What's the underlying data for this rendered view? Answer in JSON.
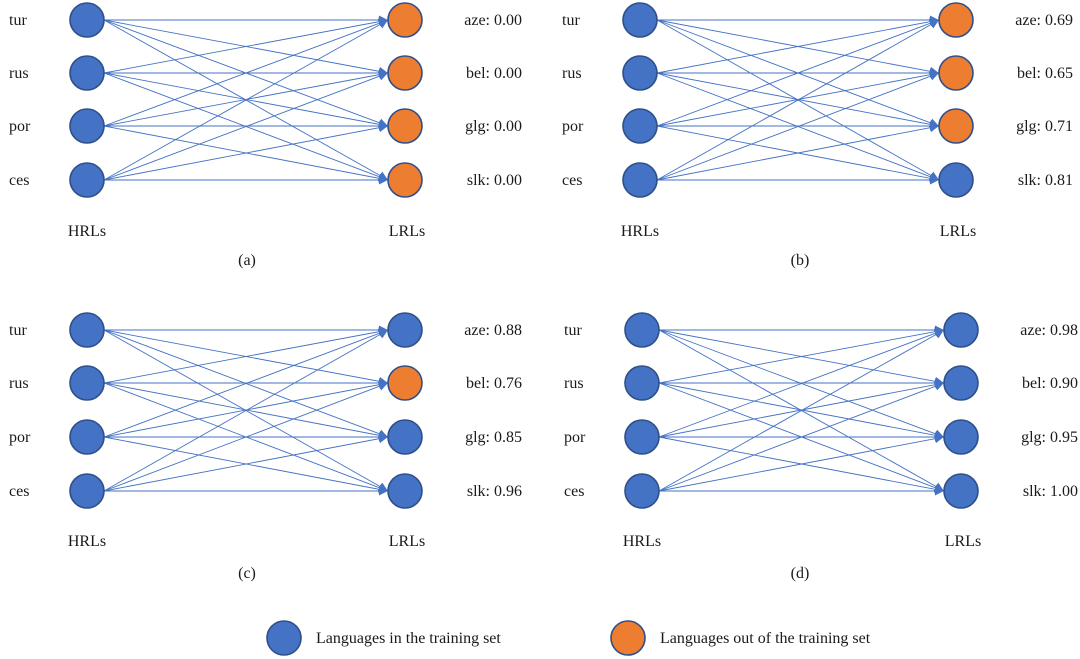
{
  "colors": {
    "in_training": "#4472c4",
    "out_of_training": "#ed7d31",
    "edge": "#4472c4",
    "node_stroke": "#2f4f8a"
  },
  "panels": [
    {
      "caption": "(a)",
      "hrl_title": "HRLs",
      "lrl_title": "LRLs",
      "hrls": [
        "tur",
        "rus",
        "por",
        "ces"
      ],
      "lrls": [
        {
          "label": "aze: 0.00",
          "in_training": false
        },
        {
          "label": "bel: 0.00",
          "in_training": false
        },
        {
          "label": "glg: 0.00",
          "in_training": false
        },
        {
          "label": "slk: 0.00",
          "in_training": false
        }
      ]
    },
    {
      "caption": "(b)",
      "hrl_title": "HRLs",
      "lrl_title": "LRLs",
      "hrls": [
        "tur",
        "rus",
        "por",
        "ces"
      ],
      "lrls": [
        {
          "label": "aze: 0.69",
          "in_training": false
        },
        {
          "label": "bel: 0.65",
          "in_training": false
        },
        {
          "label": "glg: 0.71",
          "in_training": false
        },
        {
          "label": "slk: 0.81",
          "in_training": true
        }
      ]
    },
    {
      "caption": "(c)",
      "hrl_title": "HRLs",
      "lrl_title": "LRLs",
      "hrls": [
        "tur",
        "rus",
        "por",
        "ces"
      ],
      "lrls": [
        {
          "label": "aze: 0.88",
          "in_training": true
        },
        {
          "label": "bel: 0.76",
          "in_training": false
        },
        {
          "label": "glg: 0.85",
          "in_training": true
        },
        {
          "label": "slk: 0.96",
          "in_training": true
        }
      ]
    },
    {
      "caption": "(d)",
      "hrl_title": "HRLs",
      "lrl_title": "LRLs",
      "hrls": [
        "tur",
        "rus",
        "por",
        "ces"
      ],
      "lrls": [
        {
          "label": "aze: 0.98",
          "in_training": true
        },
        {
          "label": "bel: 0.90",
          "in_training": true
        },
        {
          "label": "glg: 0.95",
          "in_training": true
        },
        {
          "label": "slk: 1.00",
          "in_training": true
        }
      ]
    }
  ],
  "legend": {
    "in_training_label": "Languages in the training set",
    "out_of_training_label": "Languages out of the training set"
  }
}
